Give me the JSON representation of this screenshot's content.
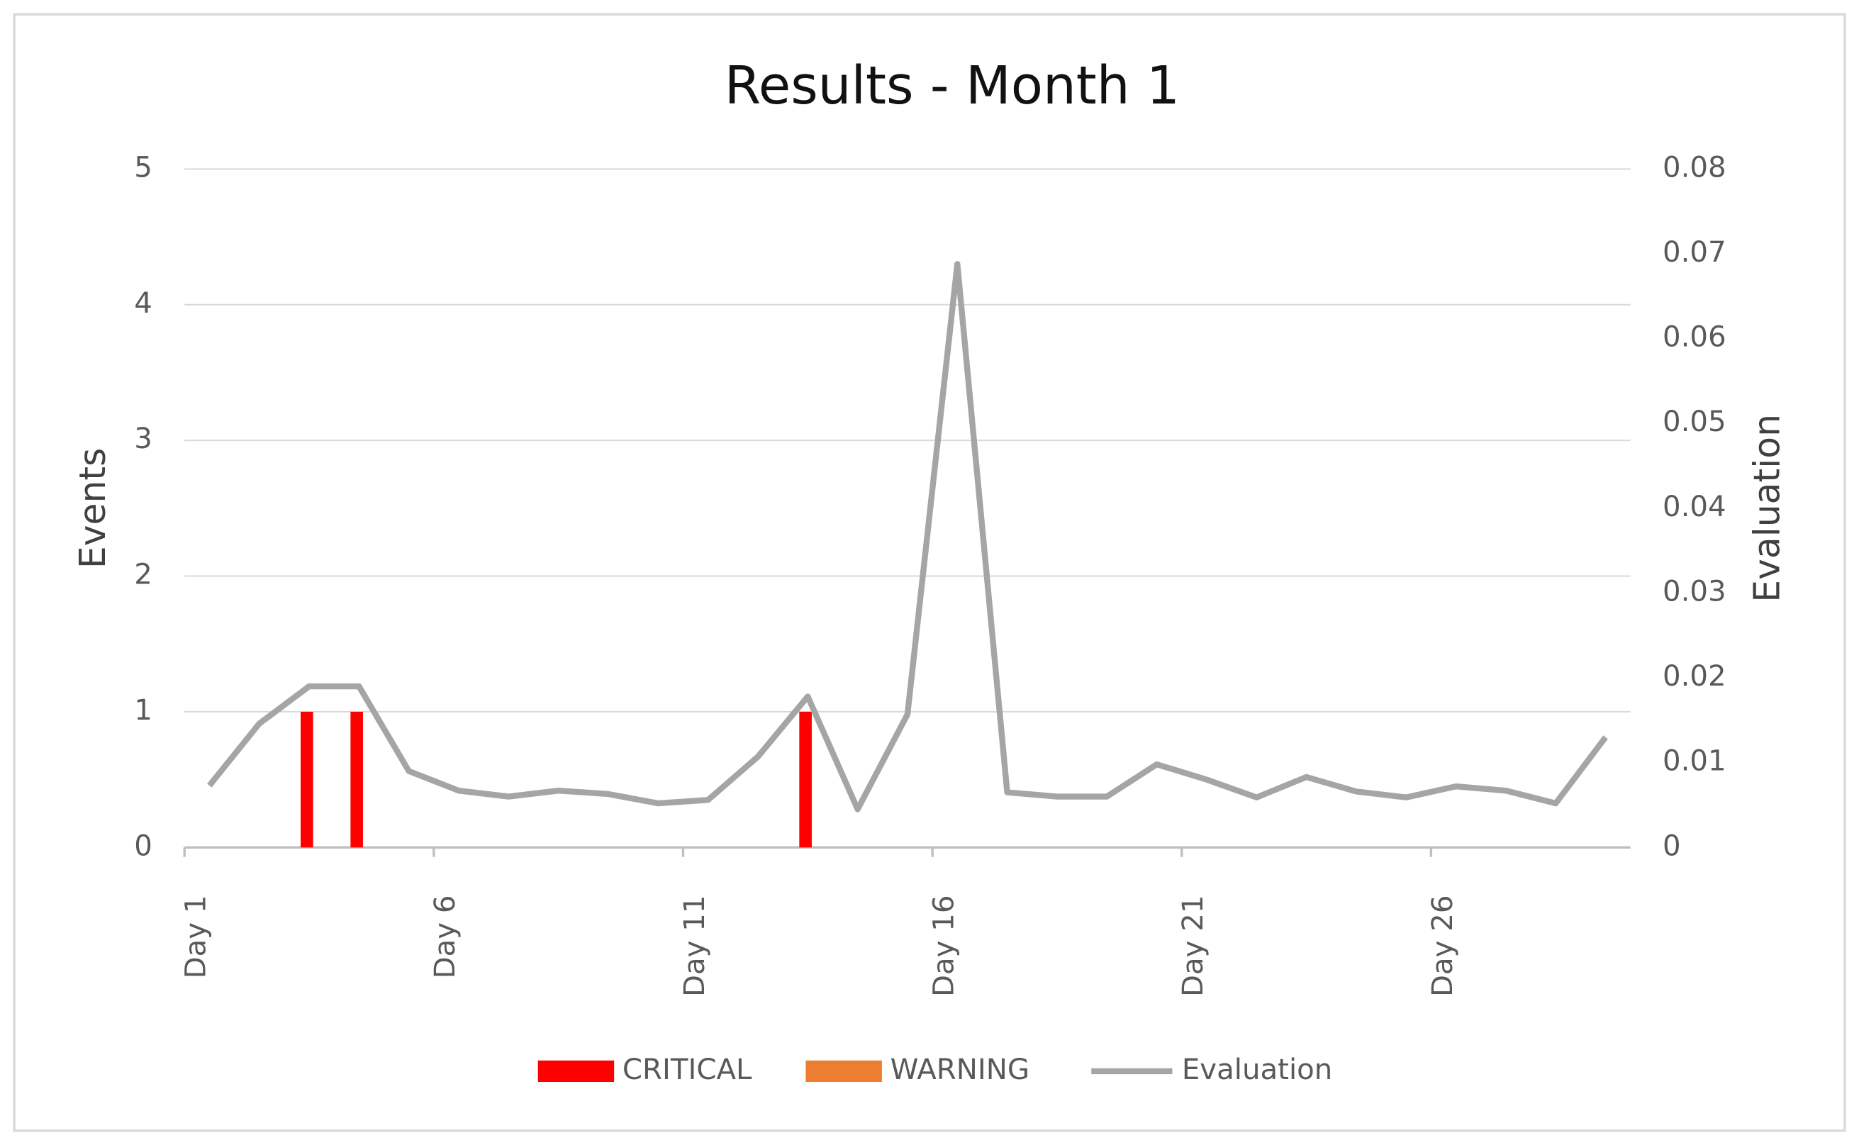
{
  "chart_data": {
    "type": "bar_line",
    "title": "Results - Month 1",
    "y_label": "Events",
    "y2_label": "Evaluation",
    "categories": [
      "Day 1",
      null,
      null,
      null,
      null,
      "Day 6",
      null,
      null,
      null,
      null,
      "Day 11",
      null,
      null,
      null,
      null,
      "Day 16",
      null,
      null,
      null,
      null,
      "Day 21",
      null,
      null,
      null,
      null,
      "Day 26",
      null,
      null,
      null
    ],
    "series": [
      {
        "name": "CRITICAL",
        "type": "bar",
        "color": "#ff0000",
        "values": [
          0,
          0,
          1,
          1,
          0,
          0,
          0,
          0,
          0,
          0,
          0,
          0,
          1,
          0,
          0,
          0,
          0,
          0,
          0,
          0,
          0,
          0,
          0,
          0,
          0,
          0,
          0,
          0,
          0
        ]
      },
      {
        "name": "WARNING",
        "type": "bar",
        "color": "#ed7d31",
        "values": [
          0,
          0,
          0,
          0,
          0,
          0,
          0,
          0,
          0,
          0,
          0,
          0,
          0,
          0,
          0,
          0,
          0,
          0,
          0,
          0,
          0,
          0,
          0,
          0,
          0,
          0,
          0,
          0,
          0
        ]
      },
      {
        "name": "Evaluation",
        "type": "line",
        "axis": "y2",
        "color": "#a5a5a5",
        "values": [
          0.0073,
          0.0146,
          0.019,
          0.019,
          0.009,
          0.0067,
          0.006,
          0.0067,
          0.0063,
          0.0052,
          0.0056,
          0.0107,
          0.0178,
          0.0045,
          0.0157,
          0.0688,
          0.0065,
          0.006,
          0.006,
          0.0098,
          0.008,
          0.0059,
          0.0083,
          0.0066,
          0.0059,
          0.0072,
          0.0067,
          0.0052,
          0.013
        ]
      }
    ],
    "ylim": [
      0,
      5
    ],
    "yticks": [
      0,
      1,
      2,
      3,
      4,
      5
    ],
    "y2lim": [
      0,
      0.08
    ],
    "y2ticks": [
      0,
      0.01,
      0.02,
      0.03,
      0.04,
      0.05,
      0.06,
      0.07,
      0.08
    ],
    "grid": true,
    "legend": "bottom"
  }
}
